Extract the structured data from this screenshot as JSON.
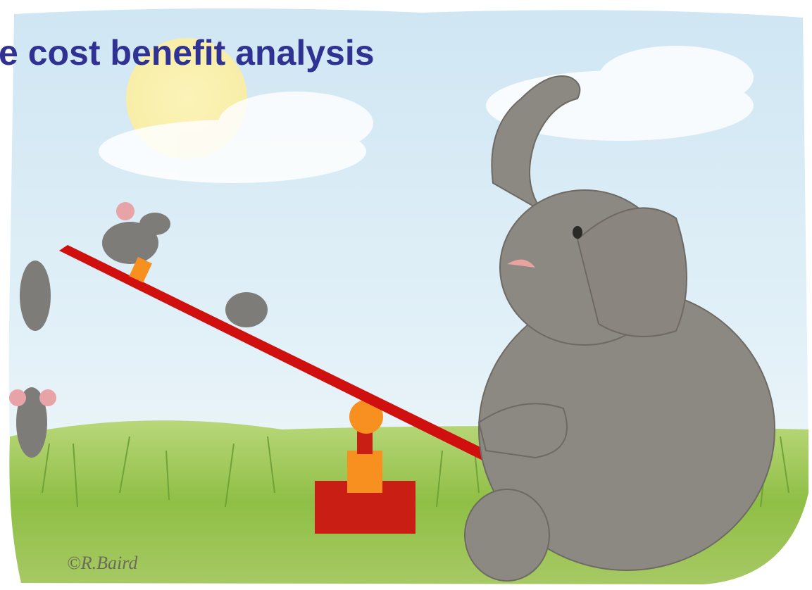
{
  "title": "e cost benefit analysis",
  "signature": "©R.Baird"
}
